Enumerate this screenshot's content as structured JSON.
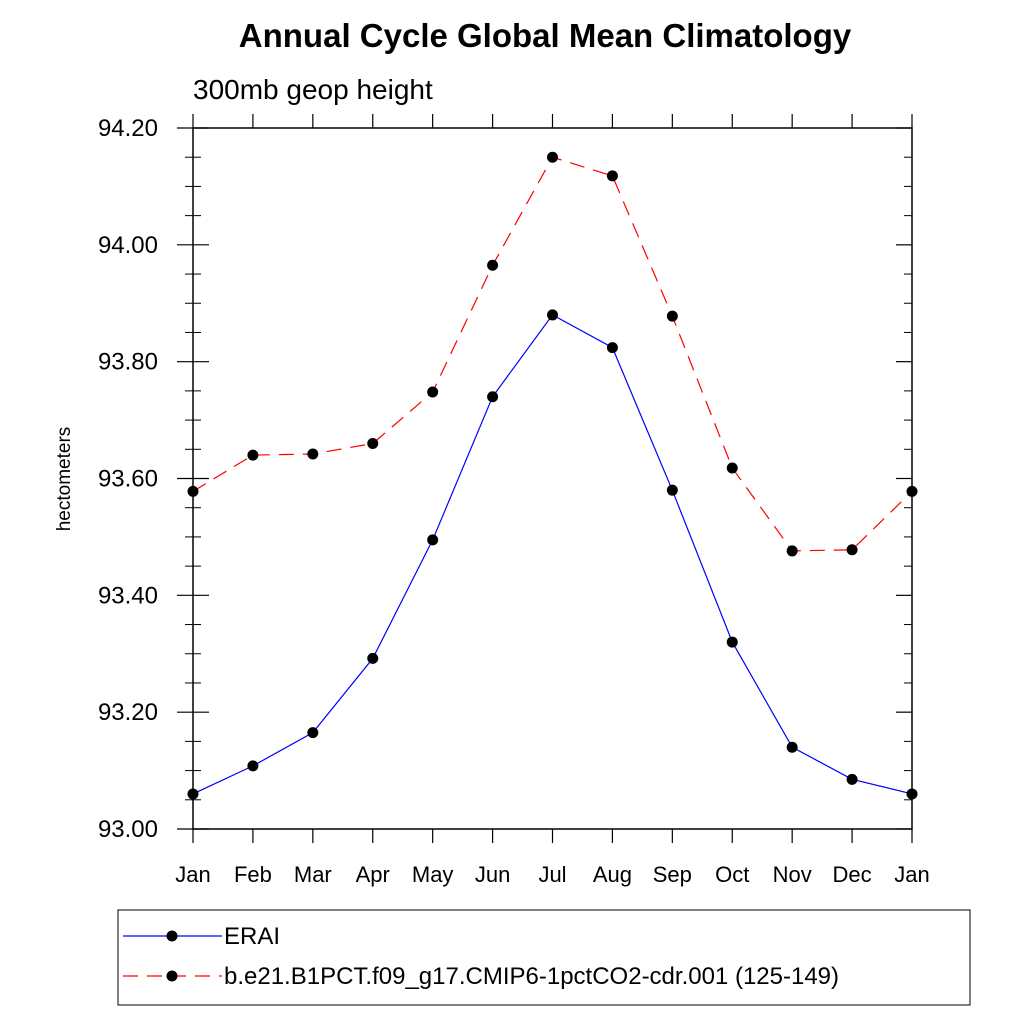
{
  "chart_data": {
    "type": "line",
    "title": "Annual Cycle Global Mean Climatology",
    "subtitle": "300mb geop height",
    "ylabel": "hectometers",
    "xlabel": "",
    "categories": [
      "Jan",
      "Feb",
      "Mar",
      "Apr",
      "May",
      "Jun",
      "Jul",
      "Aug",
      "Sep",
      "Oct",
      "Nov",
      "Dec",
      "Jan"
    ],
    "yticks": [
      "93.00",
      "93.20",
      "93.40",
      "93.60",
      "93.80",
      "94.00",
      "94.20"
    ],
    "ylim": [
      93.0,
      94.2
    ],
    "grid": false,
    "legend_position": "bottom",
    "series": [
      {
        "name": "ERAI",
        "color": "#0000ff",
        "style": "solid",
        "marker": "circle",
        "values": [
          93.06,
          93.108,
          93.165,
          93.292,
          93.495,
          93.74,
          93.88,
          93.824,
          93.58,
          93.32,
          93.14,
          93.085,
          93.06
        ]
      },
      {
        "name": "b.e21.B1PCT.f09_g17.CMIP6-1pctCO2-cdr.001 (125-149)",
        "color": "#ff0000",
        "style": "dashed",
        "marker": "circle",
        "values": [
          93.578,
          93.64,
          93.642,
          93.66,
          93.748,
          93.965,
          94.15,
          94.118,
          93.878,
          93.618,
          93.476,
          93.478,
          93.578
        ]
      }
    ]
  }
}
